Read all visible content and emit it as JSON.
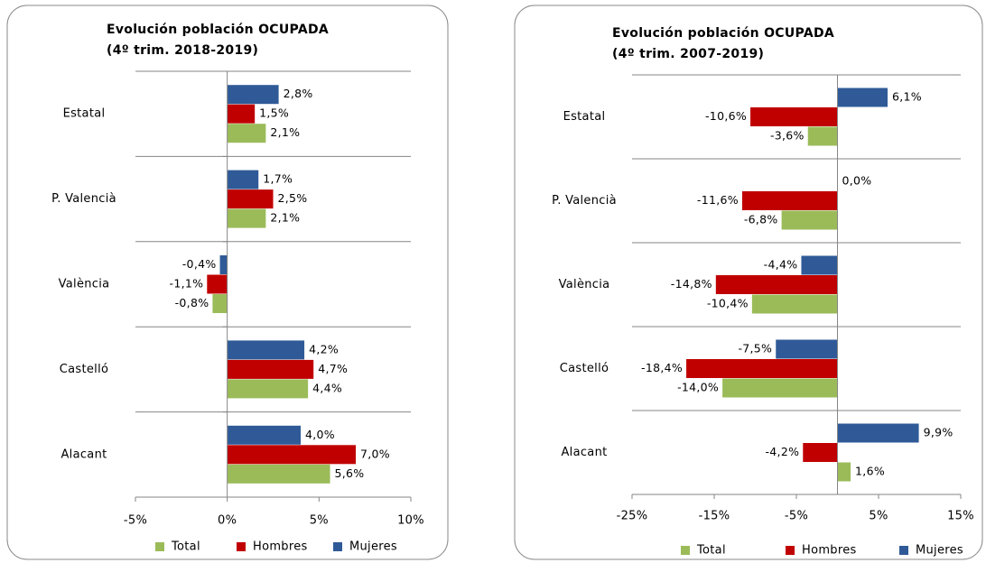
{
  "chart_data": [
    {
      "type": "bar",
      "orientation": "horizontal",
      "title": "Evolución población OCUPADA",
      "subtitle": "(4º trim. 2018-2019)",
      "categories": [
        "Estatal",
        "P. Valencià",
        "València",
        "Castelló",
        "Alacant"
      ],
      "series": [
        {
          "name": "Total",
          "color": "#9bbb59",
          "values": [
            2.1,
            2.1,
            -0.8,
            4.4,
            5.6
          ],
          "value_labels": [
            "2,1%",
            "2,1%",
            "-0,8%",
            "4,4%",
            "5,6%"
          ]
        },
        {
          "name": "Hombres",
          "color": "#c00000",
          "values": [
            1.5,
            2.5,
            -1.1,
            4.7,
            7.0
          ],
          "value_labels": [
            "1,5%",
            "2,5%",
            "-1,1%",
            "4,7%",
            "7,0%"
          ]
        },
        {
          "name": "Mujeres",
          "color": "#2f5a97",
          "values": [
            2.8,
            1.7,
            -0.4,
            4.2,
            4.0
          ],
          "value_labels": [
            "2,8%",
            "1,7%",
            "-0,4%",
            "4,2%",
            "4,0%"
          ]
        }
      ],
      "xlim": [
        -5,
        10
      ],
      "xticks": [
        {
          "value": -5,
          "label": "-5%"
        },
        {
          "value": 0,
          "label": "0%"
        },
        {
          "value": 5,
          "label": "5%"
        },
        {
          "value": 10,
          "label": "10%"
        }
      ],
      "legend": "bottom"
    },
    {
      "type": "bar",
      "orientation": "horizontal",
      "title": "Evolución población OCUPADA",
      "subtitle": "(4º trim. 2007-2019)",
      "categories": [
        "Estatal",
        "P. Valencià",
        "València",
        "Castelló",
        "Alacant"
      ],
      "series": [
        {
          "name": "Total",
          "color": "#9bbb59",
          "values": [
            -3.6,
            -6.8,
            -10.4,
            -14.0,
            1.6
          ],
          "value_labels": [
            "-3,6%",
            "-6,8%",
            "-10,4%",
            "-14,0%",
            "1,6%"
          ]
        },
        {
          "name": "Hombres",
          "color": "#c00000",
          "values": [
            -10.6,
            -11.6,
            -14.8,
            -18.4,
            -4.2
          ],
          "value_labels": [
            "-10,6%",
            "-11,6%",
            "-14,8%",
            "-18,4%",
            "-4,2%"
          ]
        },
        {
          "name": "Mujeres",
          "color": "#2f5a97",
          "values": [
            6.1,
            0.0,
            -4.4,
            -7.5,
            9.9
          ],
          "value_labels": [
            "6,1%",
            "0,0%",
            "-4,4%",
            "-7,5%",
            "9,9%"
          ]
        }
      ],
      "xlim": [
        -25,
        15
      ],
      "xticks": [
        {
          "value": -25,
          "label": "-25%"
        },
        {
          "value": -15,
          "label": "-15%"
        },
        {
          "value": -5,
          "label": "-5%"
        },
        {
          "value": 5,
          "label": "5%"
        },
        {
          "value": 15,
          "label": "15%"
        }
      ],
      "legend": "bottom"
    }
  ]
}
